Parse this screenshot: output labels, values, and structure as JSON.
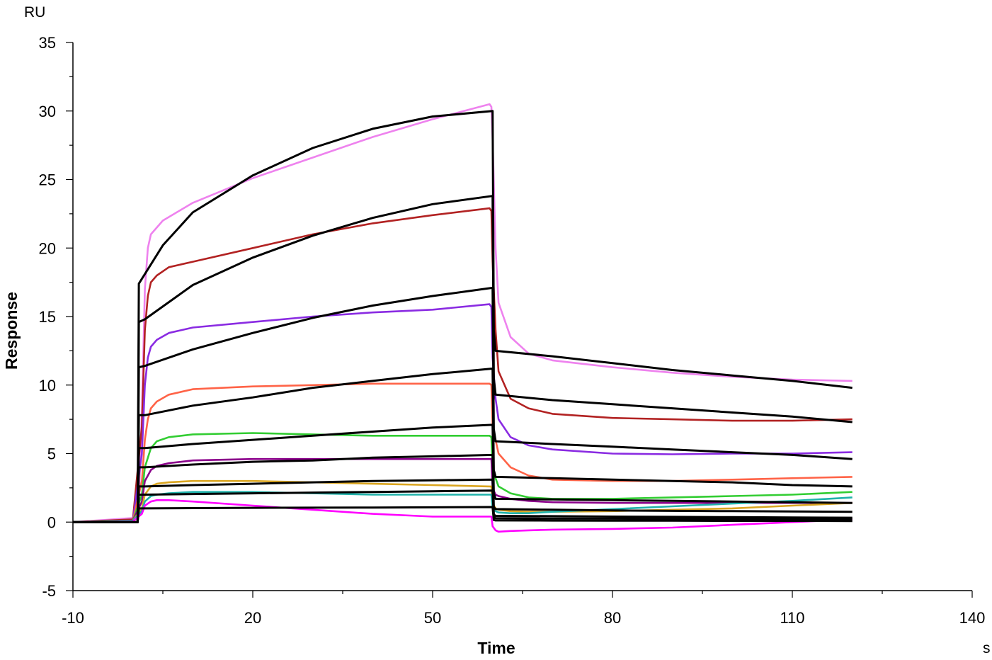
{
  "chart_data": {
    "type": "line",
    "xlabel": "Time",
    "ylabel": "Response",
    "y_unit": "RU",
    "x_unit": "s",
    "xlim": [
      -10,
      140
    ],
    "ylim": [
      -5,
      35
    ],
    "x_ticks": [
      -10,
      20,
      50,
      80,
      110,
      140
    ],
    "x_tick_labels": [
      "-10",
      "20",
      "50",
      "80",
      "110",
      "140"
    ],
    "y_ticks": [
      -5,
      0,
      5,
      10,
      15,
      20,
      25,
      30,
      35
    ],
    "y_tick_labels": [
      "-5",
      "0",
      "5",
      "10",
      "15",
      "20",
      "25",
      "30",
      "35"
    ],
    "grid": false,
    "legend": "none",
    "series": [
      {
        "color": "#ee82ee",
        "x": [
          -10,
          0,
          1,
          1.5,
          2,
          2.5,
          3,
          5,
          10,
          20,
          30,
          40,
          50,
          59.5,
          59.8,
          60,
          60.5,
          61,
          63,
          66,
          70,
          80,
          90,
          100,
          110,
          120
        ],
        "y": [
          0,
          0.3,
          1.5,
          8,
          17,
          20,
          21,
          22,
          23.3,
          25.1,
          26.6,
          28.1,
          29.4,
          30.5,
          30.3,
          28,
          20,
          16,
          13.5,
          12.3,
          11.8,
          11.3,
          10.9,
          10.6,
          10.4,
          10.3
        ]
      },
      {
        "color": "#b22222",
        "x": [
          -10,
          0,
          1.5,
          2,
          2.5,
          3,
          4,
          6,
          10,
          20,
          30,
          40,
          50,
          59.5,
          59.8,
          60,
          60.5,
          61,
          63,
          66,
          70,
          80,
          90,
          100,
          110,
          120
        ],
        "y": [
          0,
          0.2,
          7,
          14,
          16.5,
          17.5,
          18,
          18.6,
          19,
          20,
          21,
          21.8,
          22.4,
          22.9,
          22.7,
          19,
          14,
          11,
          9,
          8.3,
          7.9,
          7.6,
          7.5,
          7.4,
          7.4,
          7.5
        ]
      },
      {
        "color": "#8a2be2",
        "x": [
          -10,
          0,
          1.5,
          2,
          2.5,
          3,
          4,
          6,
          10,
          20,
          30,
          40,
          50,
          59.5,
          59.8,
          60,
          60.5,
          61,
          63,
          66,
          70,
          80,
          90,
          100,
          110,
          120
        ],
        "y": [
          0,
          0.1,
          5,
          10,
          12,
          12.8,
          13.3,
          13.8,
          14.2,
          14.6,
          15,
          15.3,
          15.5,
          15.9,
          15.7,
          12,
          9,
          7.5,
          6.2,
          5.6,
          5.3,
          5.0,
          4.95,
          5.0,
          5.0,
          5.1
        ]
      },
      {
        "color": "#ff6347",
        "x": [
          -10,
          0,
          1.5,
          2,
          2.5,
          3,
          4,
          6,
          10,
          20,
          30,
          40,
          50,
          59.5,
          59.8,
          60,
          60.5,
          61,
          63,
          66,
          70,
          80,
          90,
          100,
          110,
          120
        ],
        "y": [
          0,
          0.1,
          3,
          6,
          7.5,
          8.3,
          8.8,
          9.3,
          9.7,
          9.9,
          10,
          10.1,
          10.1,
          10.1,
          10.0,
          7,
          6,
          5,
          4,
          3.4,
          3.1,
          3.0,
          3.0,
          3.1,
          3.2,
          3.3
        ]
      },
      {
        "color": "#32cd32",
        "x": [
          -10,
          0,
          1.5,
          2,
          3,
          4,
          6,
          10,
          20,
          30,
          40,
          50,
          59.5,
          59.8,
          60,
          60.5,
          61,
          63,
          66,
          70,
          80,
          90,
          100,
          110,
          120
        ],
        "y": [
          0,
          0.1,
          2,
          4,
          5.4,
          5.9,
          6.2,
          6.4,
          6.5,
          6.4,
          6.3,
          6.3,
          6.3,
          6.2,
          4,
          3.2,
          2.6,
          2.1,
          1.8,
          1.7,
          1.7,
          1.8,
          1.9,
          2.0,
          2.2
        ]
      },
      {
        "color": "#8b008b",
        "x": [
          -10,
          0,
          1.5,
          2,
          3,
          4,
          6,
          10,
          20,
          30,
          40,
          50,
          59.5,
          59.8,
          60,
          60.5,
          61,
          63,
          66,
          70,
          80,
          90,
          100,
          110,
          120
        ],
        "y": [
          0,
          0.1,
          1.5,
          3,
          3.8,
          4.1,
          4.3,
          4.5,
          4.6,
          4.6,
          4.6,
          4.6,
          4.6,
          4.6,
          2.5,
          2.0,
          1.9,
          1.7,
          1.55,
          1.45,
          1.4,
          1.4,
          1.4,
          1.4,
          1.4
        ]
      },
      {
        "color": "#daa520",
        "x": [
          -10,
          0,
          1.5,
          2,
          3,
          4,
          6,
          10,
          20,
          30,
          40,
          50,
          59.5,
          59.8,
          60,
          60.5,
          61,
          63,
          66,
          70,
          80,
          90,
          100,
          110,
          120
        ],
        "y": [
          0,
          0.1,
          1,
          2,
          2.6,
          2.8,
          2.9,
          3.0,
          3.0,
          2.9,
          2.8,
          2.7,
          2.6,
          2.6,
          1.4,
          1.0,
          0.9,
          0.8,
          0.75,
          0.75,
          0.8,
          0.9,
          1.0,
          1.2,
          1.4
        ]
      },
      {
        "color": "#20b2aa",
        "x": [
          -10,
          0,
          1.5,
          2,
          3,
          4,
          6,
          10,
          20,
          30,
          40,
          50,
          59.5,
          59.8,
          60,
          60.5,
          61,
          63,
          66,
          70,
          80,
          90,
          100,
          110,
          120
        ],
        "y": [
          0,
          0.1,
          0.8,
          1.5,
          1.9,
          2.0,
          2.1,
          2.2,
          2.2,
          2.1,
          2.0,
          2.0,
          2.0,
          2.0,
          1.0,
          0.8,
          0.7,
          0.65,
          0.65,
          0.75,
          0.95,
          1.15,
          1.35,
          1.55,
          1.8
        ]
      },
      {
        "color": "#ff00ff",
        "x": [
          -10,
          0,
          1.5,
          2,
          3,
          4,
          6,
          10,
          20,
          30,
          40,
          50,
          59.5,
          59.8,
          60,
          60.5,
          61,
          63,
          66,
          70,
          80,
          90,
          100,
          110,
          120
        ],
        "y": [
          0,
          0.05,
          0.6,
          1.2,
          1.5,
          1.6,
          1.6,
          1.5,
          1.2,
          0.9,
          0.6,
          0.4,
          0.4,
          0.4,
          -0.3,
          -0.6,
          -0.7,
          -0.65,
          -0.6,
          -0.55,
          -0.5,
          -0.4,
          -0.2,
          0.0,
          0.2
        ]
      },
      {
        "color": "#000000",
        "x": [
          -10,
          0,
          0.8,
          1,
          5,
          10,
          20,
          30,
          40,
          50,
          60,
          60.2,
          60.5,
          70,
          80,
          90,
          100,
          110,
          120
        ],
        "y": [
          0,
          0,
          0,
          17.4,
          20.2,
          22.6,
          25.3,
          27.3,
          28.7,
          29.6,
          30.0,
          14,
          12.5,
          12.1,
          11.6,
          11.1,
          10.7,
          10.3,
          9.8
        ]
      },
      {
        "color": "#000000",
        "x": [
          -10,
          0,
          0.8,
          1,
          2,
          10,
          20,
          30,
          40,
          50,
          60,
          60.2,
          60.5,
          70,
          80,
          90,
          100,
          110,
          120
        ],
        "y": [
          0,
          0,
          0,
          14.6,
          14.8,
          17.3,
          19.3,
          20.9,
          22.2,
          23.2,
          23.8,
          10.5,
          9.3,
          8.9,
          8.6,
          8.3,
          8.0,
          7.7,
          7.3
        ]
      },
      {
        "color": "#000000",
        "x": [
          -10,
          0,
          0.8,
          1,
          2,
          10,
          20,
          30,
          40,
          50,
          60,
          60.2,
          60.5,
          70,
          80,
          90,
          100,
          110,
          120
        ],
        "y": [
          0,
          0,
          0,
          11.3,
          11.4,
          12.6,
          13.8,
          14.9,
          15.8,
          16.5,
          17.1,
          6.8,
          5.9,
          5.7,
          5.5,
          5.3,
          5.1,
          4.9,
          4.6
        ]
      },
      {
        "color": "#000000",
        "x": [
          -10,
          0,
          0.8,
          1,
          2,
          10,
          20,
          30,
          40,
          50,
          60,
          60.2,
          60.5,
          70,
          80,
          90,
          100,
          110,
          120
        ],
        "y": [
          0,
          0,
          0,
          7.8,
          7.8,
          8.5,
          9.1,
          9.8,
          10.3,
          10.8,
          11.2,
          3.8,
          3.3,
          3.2,
          3.1,
          3.0,
          2.9,
          2.7,
          2.6
        ]
      },
      {
        "color": "#000000",
        "x": [
          -10,
          0,
          0.8,
          1,
          2,
          10,
          20,
          30,
          40,
          50,
          60,
          60.2,
          60.5,
          70,
          80,
          90,
          100,
          110,
          120
        ],
        "y": [
          0,
          0,
          0,
          5.4,
          5.4,
          5.7,
          6.0,
          6.3,
          6.6,
          6.9,
          7.1,
          2.1,
          1.7,
          1.65,
          1.6,
          1.55,
          1.5,
          1.45,
          1.4
        ]
      },
      {
        "color": "#000000",
        "x": [
          -10,
          0,
          0.8,
          1,
          2,
          10,
          20,
          30,
          40,
          50,
          60,
          60.2,
          60.5,
          70,
          80,
          90,
          100,
          110,
          120
        ],
        "y": [
          0,
          0,
          0,
          4.0,
          4.0,
          4.2,
          4.4,
          4.5,
          4.7,
          4.8,
          4.9,
          1.1,
          0.95,
          0.9,
          0.85,
          0.82,
          0.8,
          0.78,
          0.75
        ]
      },
      {
        "color": "#000000",
        "x": [
          -10,
          0,
          0.8,
          1,
          2,
          10,
          20,
          30,
          40,
          50,
          60,
          60.2,
          60.5,
          70,
          80,
          90,
          100,
          110,
          120
        ],
        "y": [
          0,
          0,
          0,
          2.6,
          2.6,
          2.7,
          2.8,
          2.9,
          3.0,
          3.05,
          3.1,
          0.55,
          0.45,
          0.43,
          0.4,
          0.38,
          0.36,
          0.34,
          0.32
        ]
      },
      {
        "color": "#000000",
        "x": [
          -10,
          0,
          0.8,
          1,
          2,
          10,
          20,
          30,
          40,
          50,
          60,
          60.2,
          60.5,
          70,
          80,
          90,
          100,
          110,
          120
        ],
        "y": [
          0,
          0,
          0,
          2.0,
          2.0,
          2.05,
          2.1,
          2.15,
          2.2,
          2.25,
          2.3,
          0.35,
          0.28,
          0.26,
          0.25,
          0.24,
          0.23,
          0.22,
          0.2
        ]
      },
      {
        "color": "#000000",
        "x": [
          -10,
          0,
          0.8,
          1,
          2,
          10,
          20,
          30,
          40,
          50,
          60,
          60.2,
          60.5,
          70,
          80,
          90,
          100,
          110,
          120
        ],
        "y": [
          0,
          0,
          0,
          1.0,
          1.0,
          1.02,
          1.04,
          1.05,
          1.06,
          1.08,
          1.1,
          0.15,
          0.12,
          0.11,
          0.1,
          0.1,
          0.09,
          0.09,
          0.08
        ]
      }
    ]
  }
}
